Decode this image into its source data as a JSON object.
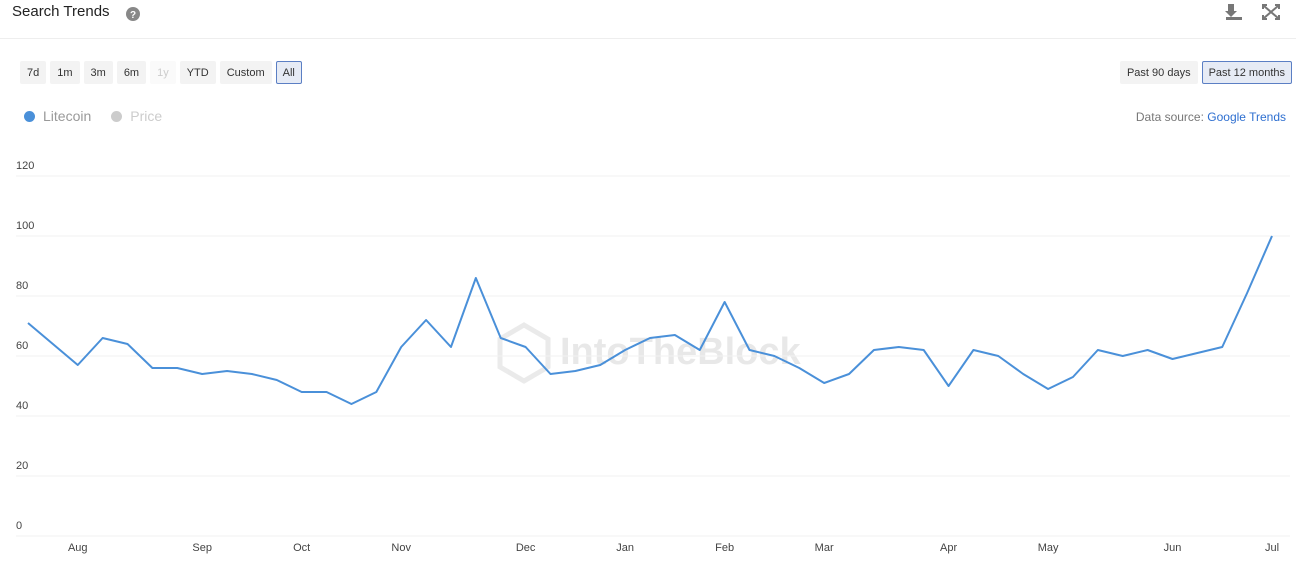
{
  "header": {
    "title": "Search Trends"
  },
  "range_buttons": {
    "labels": [
      "7d",
      "1m",
      "3m",
      "6m",
      "1y",
      "YTD",
      "Custom",
      "All"
    ],
    "active": 7,
    "disabled": [
      4
    ]
  },
  "period_buttons": {
    "labels": [
      "Past 90 days",
      "Past 12 months"
    ],
    "active": 1
  },
  "data_source": {
    "label": "Data source:",
    "link": "Google Trends"
  },
  "watermark": "IntoTheBlock",
  "chart_data": {
    "type": "line",
    "categories": [
      null,
      null,
      "Aug",
      null,
      null,
      null,
      null,
      "Sep",
      null,
      null,
      null,
      "Oct",
      null,
      null,
      null,
      "Nov",
      null,
      null,
      null,
      null,
      "Dec",
      null,
      null,
      null,
      "Jan",
      null,
      null,
      null,
      "Feb",
      null,
      null,
      null,
      "Mar",
      null,
      null,
      null,
      null,
      "Apr",
      null,
      null,
      null,
      "May",
      null,
      null,
      null,
      null,
      "Jun",
      null,
      null,
      null,
      "Jul"
    ],
    "series": [
      {
        "name": "Litecoin",
        "color": "#4a90d9",
        "values": [
          71,
          64,
          57,
          66,
          64,
          56,
          56,
          54,
          55,
          54,
          52,
          48,
          48,
          44,
          48,
          63,
          72,
          63,
          86,
          66,
          63,
          54,
          55,
          57,
          62,
          66,
          67,
          62,
          78,
          62,
          60,
          56,
          51,
          54,
          62,
          63,
          62,
          50,
          62,
          60,
          54,
          49,
          53,
          62,
          60,
          62,
          59,
          61,
          63,
          81,
          100
        ]
      }
    ],
    "hidden_series": [
      {
        "name": "Price",
        "color": "#cccccc"
      }
    ],
    "ylim": [
      0,
      120
    ],
    "yticks": [
      0,
      20,
      40,
      60,
      80,
      100,
      120
    ],
    "grid": true
  }
}
